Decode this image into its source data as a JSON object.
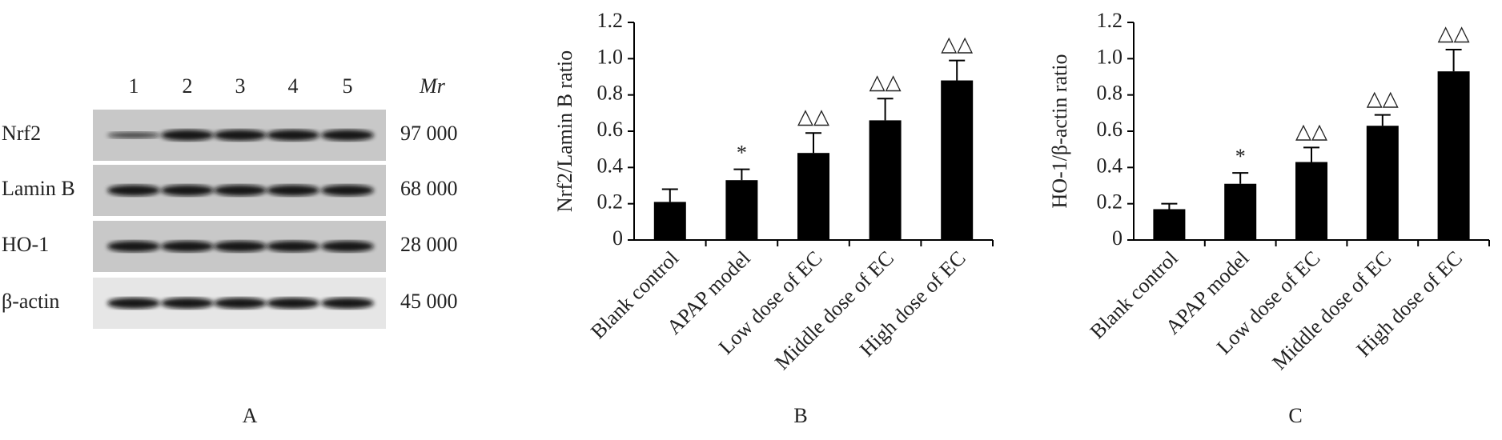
{
  "blot": {
    "lanes": [
      "1",
      "2",
      "3",
      "4",
      "5"
    ],
    "mr_header": "Mr",
    "rows": [
      {
        "name": "Nrf2",
        "mr": "97 000"
      },
      {
        "name": "Lamin B",
        "mr": "68 000"
      },
      {
        "name": "HO-1",
        "mr": "28 000"
      },
      {
        "name": "β-actin",
        "mr": "45 000"
      }
    ],
    "panel_label": "A"
  },
  "chart_data": [
    {
      "type": "bar",
      "panel_label": "B",
      "y_label": "Nrf2/Lamin B ratio",
      "categories": [
        "Blank control",
        "APAP model",
        "Low dose of EC",
        "Middle dose of EC",
        "High dose of EC"
      ],
      "values": [
        0.21,
        0.33,
        0.48,
        0.66,
        0.88
      ],
      "errors": [
        0.07,
        0.06,
        0.11,
        0.12,
        0.11
      ],
      "annotations": [
        null,
        "*",
        "△△",
        "△△",
        "△△"
      ],
      "color": "#000000",
      "ylim": [
        0,
        1.2
      ],
      "yticks": [
        0,
        0.2,
        0.4,
        0.6,
        0.8,
        {
          "value": 1,
          "label": "1.0"
        },
        1.2
      ]
    },
    {
      "type": "bar",
      "panel_label": "C",
      "y_label": "HO-1/β-actin ratio",
      "categories": [
        "Blank control",
        "APAP model",
        "Low dose of EC",
        "Middle dose of EC",
        "High dose of EC"
      ],
      "values": [
        0.17,
        0.31,
        0.43,
        0.63,
        0.93
      ],
      "errors": [
        0.03,
        0.06,
        0.08,
        0.06,
        0.12
      ],
      "annotations": [
        null,
        "*",
        "△△",
        "△△",
        "△△"
      ],
      "color": "#000000",
      "ylim": [
        0,
        1.2
      ],
      "yticks": [
        0,
        0.2,
        0.4,
        0.6,
        0.8,
        {
          "value": 1,
          "label": "1.0"
        },
        1.2
      ]
    }
  ]
}
